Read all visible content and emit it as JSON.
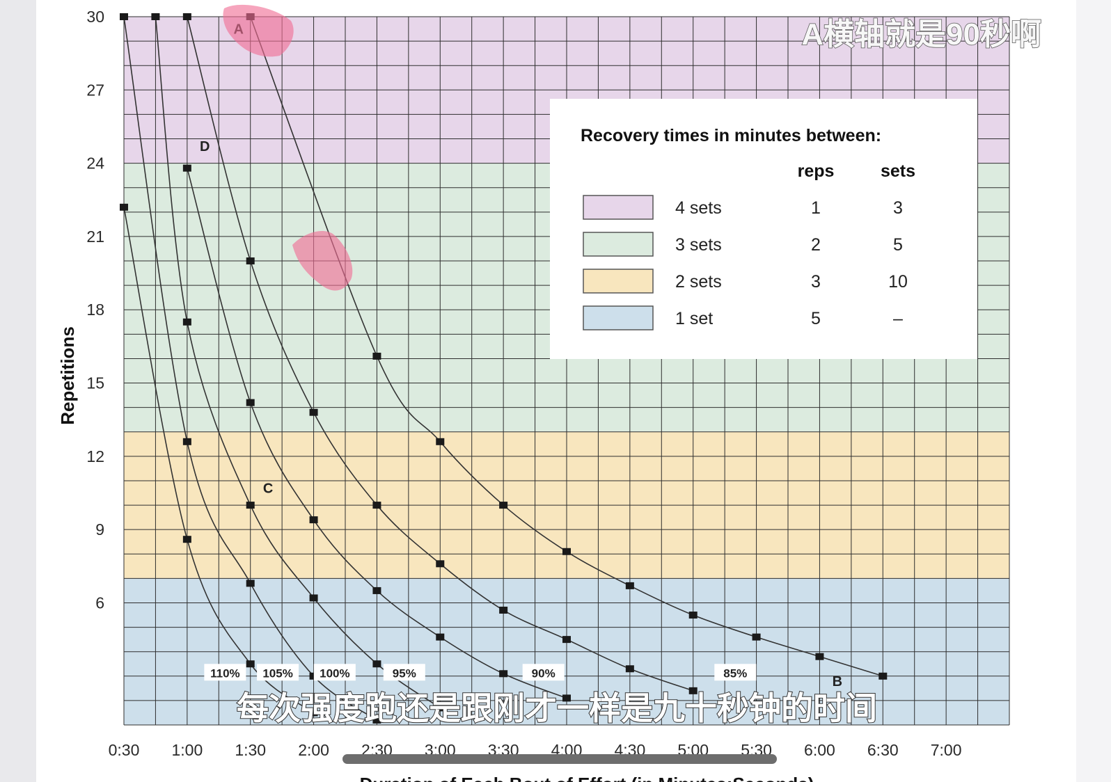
{
  "chart_data": {
    "type": "line",
    "xlabel": "Duration of Each Bout of Effort (in Minutes:Seconds)",
    "ylabel": "Repetitions",
    "xlim": [
      30,
      450
    ],
    "ylim": [
      1,
      30
    ],
    "x_tick_labels": [
      "0:30",
      "1:00",
      "1:30",
      "2:00",
      "2:30",
      "3:00",
      "3:30",
      "4:00",
      "4:30",
      "5:00",
      "5:30",
      "6:00",
      "6:30",
      "7:00"
    ],
    "x_tick_values": [
      30,
      60,
      90,
      120,
      150,
      180,
      210,
      240,
      270,
      300,
      330,
      360,
      390,
      420
    ],
    "y_ticks": [
      6,
      9,
      12,
      15,
      18,
      21,
      24,
      27,
      30
    ],
    "grid": true,
    "bands": [
      {
        "name": "4 sets",
        "from": 24,
        "to": 30,
        "color": "#e7d6ea"
      },
      {
        "name": "3 sets",
        "from": 13,
        "to": 24,
        "color": "#dcebdf"
      },
      {
        "name": "2 sets",
        "from": 7,
        "to": 13,
        "color": "#f8e6be"
      },
      {
        "name": "1 set",
        "from": 1,
        "to": 7,
        "color": "#cddfeb"
      }
    ],
    "series": [
      {
        "name": "110%",
        "points": [
          [
            30,
            22.2
          ],
          [
            60,
            8.6
          ],
          [
            90,
            3.5
          ],
          [
            120,
            1.5
          ]
        ]
      },
      {
        "name": "105%",
        "points": [
          [
            30,
            30
          ],
          [
            60,
            12.6
          ],
          [
            90,
            6.8
          ],
          [
            120,
            3.0
          ],
          [
            150,
            1.2
          ]
        ]
      },
      {
        "name": "100%",
        "points": [
          [
            45,
            30
          ],
          [
            60,
            17.5
          ],
          [
            90,
            10.0
          ],
          [
            120,
            6.2
          ],
          [
            150,
            3.5
          ],
          [
            180,
            1.7
          ]
        ]
      },
      {
        "name": "95%",
        "points": [
          [
            60,
            23.8
          ],
          [
            90,
            14.2
          ],
          [
            120,
            9.4
          ],
          [
            150,
            6.5
          ],
          [
            180,
            4.6
          ],
          [
            210,
            3.1
          ],
          [
            240,
            2.1
          ]
        ]
      },
      {
        "name": "90%",
        "points": [
          [
            60,
            30
          ],
          [
            90,
            20.0
          ],
          [
            120,
            13.8
          ],
          [
            150,
            10.0
          ],
          [
            180,
            7.6
          ],
          [
            210,
            5.7
          ],
          [
            240,
            4.5
          ],
          [
            270,
            3.3
          ],
          [
            300,
            2.4
          ]
        ]
      },
      {
        "name": "85%",
        "points": [
          [
            90,
            30
          ],
          [
            150,
            16.1
          ],
          [
            180,
            12.6
          ],
          [
            210,
            10.0
          ],
          [
            240,
            8.1
          ],
          [
            270,
            6.7
          ],
          [
            300,
            5.5
          ],
          [
            330,
            4.6
          ],
          [
            360,
            3.8
          ],
          [
            390,
            3.0
          ]
        ]
      }
    ],
    "percent_labels": [
      {
        "text": "110%",
        "x": 78,
        "y": 3.1
      },
      {
        "text": "105%",
        "x": 103,
        "y": 3.1
      },
      {
        "text": "100%",
        "x": 130,
        "y": 3.1
      },
      {
        "text": "95%",
        "x": 163,
        "y": 3.1
      },
      {
        "text": "90%",
        "x": 229,
        "y": 3.1
      },
      {
        "text": "85%",
        "x": 320,
        "y": 3.1
      }
    ],
    "point_labels": [
      {
        "text": "A",
        "x": 82,
        "y": 29.3
      },
      {
        "text": "D",
        "x": 66,
        "y": 24.5
      },
      {
        "text": "C",
        "x": 96,
        "y": 10.5
      },
      {
        "text": "B",
        "x": 366,
        "y": 2.6
      }
    ],
    "legend": {
      "title": "Recovery times in minutes between:",
      "headers": [
        "reps",
        "sets"
      ],
      "placement": "upper-right",
      "rows": [
        {
          "label": "4 sets",
          "reps": "1",
          "sets": "3",
          "color": "#e7d6ea"
        },
        {
          "label": "3 sets",
          "reps": "2",
          "sets": "5",
          "color": "#dcebdf"
        },
        {
          "label": "2 sets",
          "reps": "3",
          "sets": "10",
          "color": "#f8e6be"
        },
        {
          "label": "1 set",
          "reps": "5",
          "sets": "–",
          "color": "#cddfeb"
        }
      ]
    }
  },
  "overlay": {
    "title_text": "A横轴就是90秒啊",
    "caption_text": "每次强度跑还是跟刚才一样是九十秒钟的时间"
  },
  "colors": {
    "grid": "#2e2e2e",
    "curve": "#333333",
    "marker": "#1a1a1a",
    "highlighter": "#f06e95"
  }
}
